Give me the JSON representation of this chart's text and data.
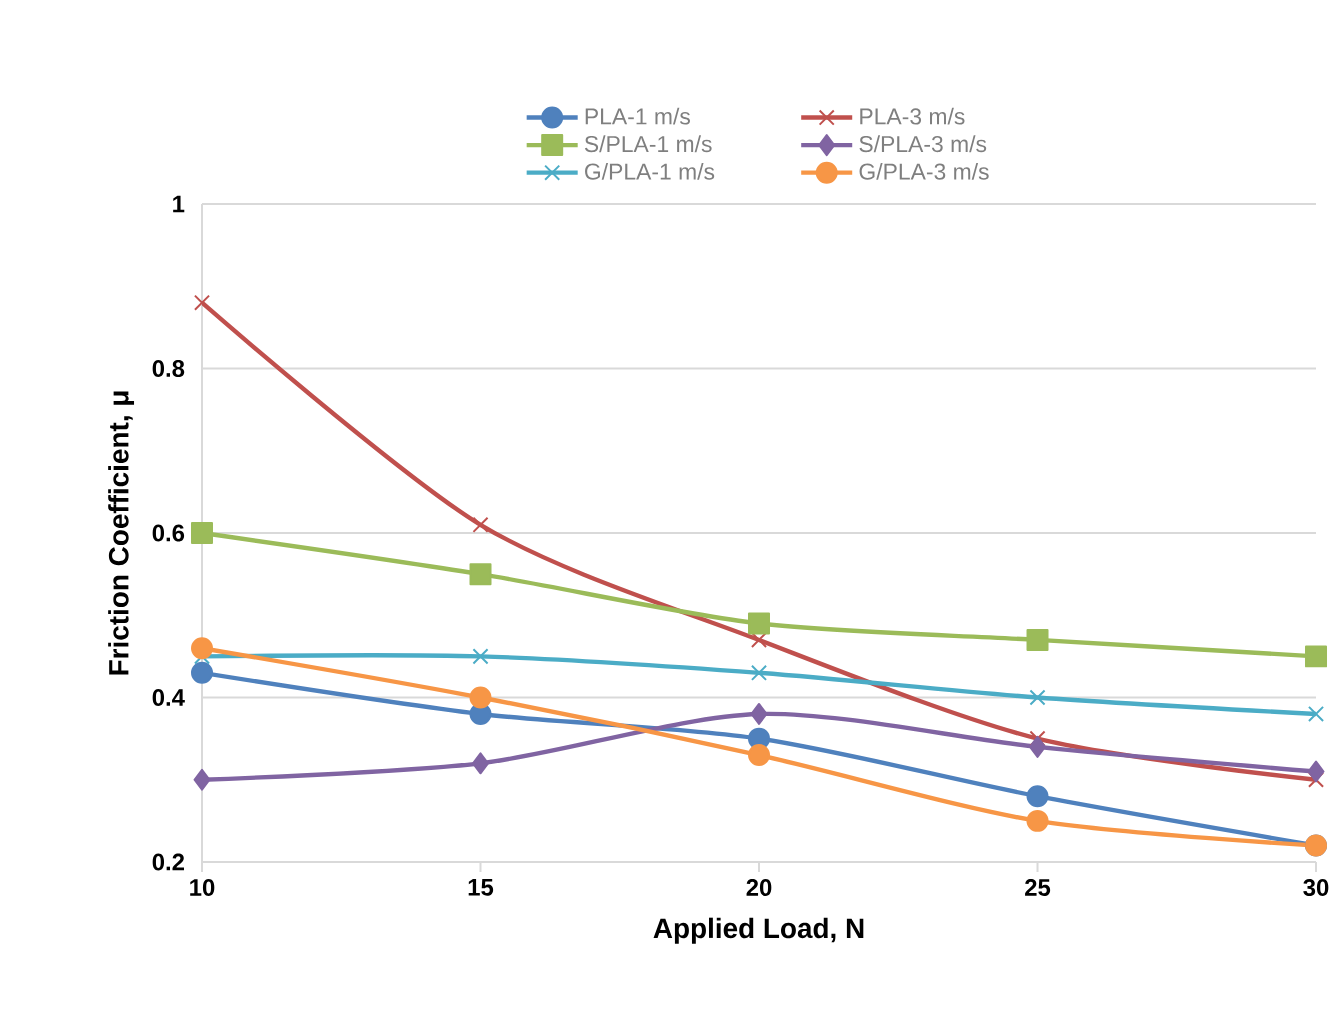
{
  "chart_data": {
    "type": "line",
    "xlabel": "Applied Load, N",
    "ylabel": "Friction Coefficient, μ",
    "x": [
      10,
      15,
      20,
      25,
      30
    ],
    "xlim": [
      10,
      30
    ],
    "xticks": [
      10,
      15,
      20,
      25,
      30
    ],
    "ylim": [
      0.2,
      1
    ],
    "yticks": [
      0.2,
      0.4,
      0.6,
      0.8,
      1
    ],
    "grid": "y",
    "legend": "top",
    "line_style": "solid",
    "series": [
      {
        "name": "PLA-1 m/s",
        "color": "#4f81bd",
        "marker": "circle",
        "values": [
          0.43,
          0.38,
          0.35,
          0.28,
          0.22
        ]
      },
      {
        "name": "PLA-3 m/s",
        "color": "#c0504d",
        "marker": "cross",
        "values": [
          0.88,
          0.61,
          0.47,
          0.35,
          0.3
        ]
      },
      {
        "name": "S/PLA-1 m/s",
        "color": "#9bbb59",
        "marker": "square",
        "values": [
          0.6,
          0.55,
          0.49,
          0.47,
          0.45
        ]
      },
      {
        "name": "S/PLA-3 m/s",
        "color": "#8064a2",
        "marker": "diamond",
        "values": [
          0.3,
          0.32,
          0.38,
          0.34,
          0.31
        ]
      },
      {
        "name": "G/PLA-1 m/s",
        "color": "#4bacc6",
        "marker": "cross",
        "values": [
          0.45,
          0.45,
          0.43,
          0.4,
          0.38
        ]
      },
      {
        "name": "G/PLA-3 m/s",
        "color": "#f79646",
        "marker": "circle",
        "values": [
          0.46,
          0.4,
          0.33,
          0.25,
          0.22
        ]
      }
    ]
  }
}
